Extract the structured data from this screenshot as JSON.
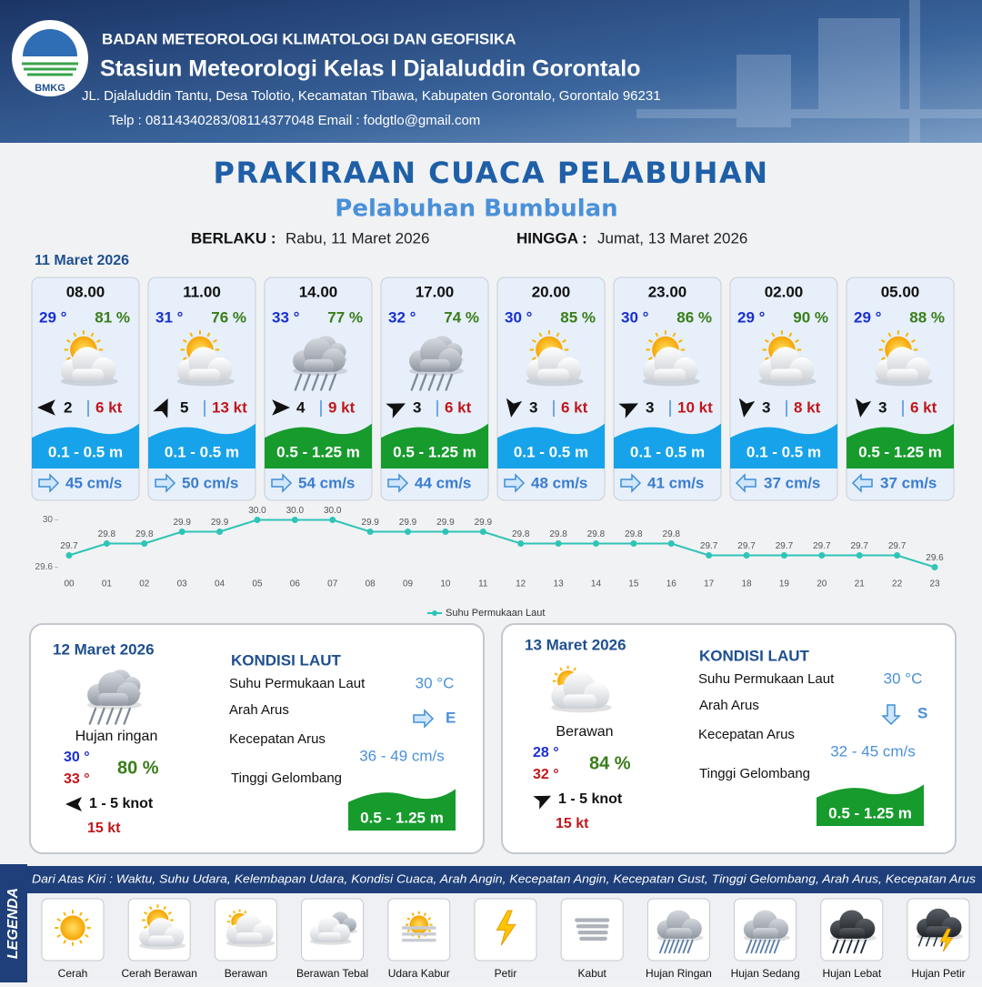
{
  "header": {
    "logo_text": "BMKG",
    "organization": "BADAN METEOROLOGI KLIMATOLOGI DAN GEOFISIKA",
    "station": "Stasiun Meteorologi Kelas I Djalaluddin Gorontalo",
    "address": "JL. Djalaluddin Tantu, Desa Tolotio, Kecamatan Tibawa, Kabupaten Gorontalo, Gorontalo 96231",
    "contact": "Telp : 08114340283/08114377048 Email : fodgtlo@gmail.com"
  },
  "title": "PRAKIRAAN CUACA PELABUHAN",
  "subtitle": "Pelabuhan Bumbulan",
  "validity": {
    "from_label": "BERLAKU :",
    "from": "Rabu, 11 Maret 2026",
    "to_label": "HINGGA :",
    "to": "Jumat, 13 Maret 2026"
  },
  "day1": {
    "date": "11 Maret 2026",
    "forecasts": [
      {
        "time": "08.00",
        "temp": "29 °",
        "humidity": "81 %",
        "wind": "2",
        "gust": "6 kt",
        "wave": "0.1 - 0.5 m",
        "current": "45 cm/s"
      },
      {
        "time": "11.00",
        "temp": "31 °",
        "humidity": "76 %",
        "wind": "5",
        "gust": "13 kt",
        "wave": "0.1 - 0.5 m",
        "current": "50 cm/s"
      },
      {
        "time": "14.00",
        "temp": "33 °",
        "humidity": "77 %",
        "wind": "4",
        "gust": "9 kt",
        "wave": "0.5 - 1.25 m",
        "current": "54 cm/s"
      },
      {
        "time": "17.00",
        "temp": "32 °",
        "humidity": "74 %",
        "wind": "3",
        "gust": "6 kt",
        "wave": "0.5 - 1.25 m",
        "current": "44 cm/s"
      },
      {
        "time": "20.00",
        "temp": "30 °",
        "humidity": "85 %",
        "wind": "3",
        "gust": "6 kt",
        "wave": "0.1 - 0.5 m",
        "current": "48 cm/s"
      },
      {
        "time": "23.00",
        "temp": "30 °",
        "humidity": "86 %",
        "wind": "3",
        "gust": "10 kt",
        "wave": "0.1 - 0.5 m",
        "current": "41 cm/s"
      },
      {
        "time": "02.00",
        "temp": "29 °",
        "humidity": "90 %",
        "wind": "3",
        "gust": "8 kt",
        "wave": "0.1 - 0.5 m",
        "current": "37 cm/s"
      },
      {
        "time": "05.00",
        "temp": "29 °",
        "humidity": "88 %",
        "wind": "3",
        "gust": "6 kt",
        "wave": "0.5 - 1.25 m",
        "current": "37 cm/s"
      }
    ]
  },
  "chart_data": {
    "type": "line",
    "categories": [
      "00",
      "01",
      "02",
      "03",
      "04",
      "05",
      "06",
      "07",
      "08",
      "09",
      "10",
      "11",
      "12",
      "13",
      "14",
      "15",
      "16",
      "17",
      "18",
      "19",
      "20",
      "21",
      "22",
      "23"
    ],
    "series": [
      {
        "name": "Suhu Permukaan Laut",
        "color": "#2ec4b6",
        "values": [
          29.7,
          29.8,
          29.8,
          29.9,
          29.9,
          30,
          30,
          30,
          29.9,
          29.9,
          29.9,
          29.9,
          29.8,
          29.8,
          29.8,
          29.8,
          29.8,
          29.7,
          29.7,
          29.7,
          29.7,
          29.7,
          29.7,
          29.6
        ],
        "value_labels": [
          "29.7",
          "29.8",
          "29.8",
          "29.9",
          "29.9",
          "30.0",
          "30.0",
          "30.0",
          "29.9",
          "29.9",
          "29.9",
          "29.9",
          "29.8",
          "29.8",
          "29.8",
          "29.8",
          "29.8",
          "29.7",
          "29.7",
          "29.7",
          "29.7",
          "29.7",
          "29.7",
          "29.6"
        ]
      }
    ],
    "ylim": [
      29.55,
      30.05
    ],
    "yticks": [
      29.6,
      30
    ],
    "legend": "bottom"
  },
  "outlook": [
    {
      "date": "12 Maret 2026",
      "condition": "Hujan ringan",
      "temp_min": "30 °",
      "temp_max": "33 °",
      "humidity": "80 %",
      "wind": "1 - 5 knot",
      "gust": "15 kt",
      "sea_heading": "KONDISI LAUT",
      "sst_label": "Suhu Permukaan Laut",
      "sst": "30 °C",
      "current_dir_label": "Arah Arus",
      "current_dir": "E",
      "current_speed_label": "Kecepatan Arus",
      "current_speed": "36 - 49 cm/s",
      "wave_label": "Tinggi Gelombang",
      "wave": "0.5 - 1.25 m"
    },
    {
      "date": "13 Maret 2026",
      "condition": "Berawan",
      "temp_min": "28 °",
      "temp_max": "32 °",
      "humidity": "84 %",
      "wind": "1 - 5 knot",
      "gust": "15 kt",
      "sea_heading": "KONDISI LAUT",
      "sst_label": "Suhu Permukaan Laut",
      "sst": "30 °C",
      "current_dir_label": "Arah Arus",
      "current_dir": "S",
      "current_speed_label": "Kecepatan Arus",
      "current_speed": "32 - 45 cm/s",
      "wave_label": "Tinggi Gelombang",
      "wave": "0.5 - 1.25 m"
    }
  ],
  "legend": {
    "title": "LEGENDA",
    "description": "Dari Atas Kiri : Waktu, Suhu Udara, Kelembapan Udara, Kondisi Cuaca, Arah Angin, Kecepatan Angin, Kecepatan Gust, Tinggi Gelombang, Arah Arus, Kecepatan Arus",
    "items": [
      "Cerah",
      "Cerah Berawan",
      "Berawan",
      "Berawan Tebal",
      "Udara Kabur",
      "Petir",
      "Kabut",
      "Hujan Ringan",
      "Hujan Sedang",
      "Hujan Lebat",
      "Hujan Petir"
    ]
  }
}
